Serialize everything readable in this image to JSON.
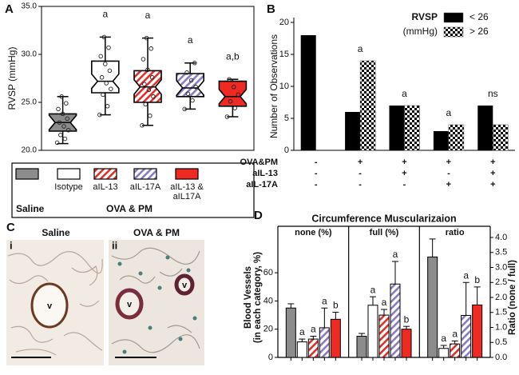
{
  "chart_data": [
    {
      "type": "box",
      "panel": "A",
      "y_label": "RVSP (mmHg)",
      "ylim": [
        20,
        35
      ],
      "yticks": [
        {
          "value": 20,
          "label": "20.0"
        },
        {
          "value": 25,
          "label": "25.0"
        },
        {
          "value": 30,
          "label": "30.0"
        },
        {
          "value": 35,
          "label": "35.0"
        }
      ],
      "groups": [
        {
          "name": "Saline",
          "color": "#8c8c8c",
          "pattern": "solid",
          "whislo": 20.7,
          "q1": 22.0,
          "median": 22.9,
          "q3": 23.8,
          "whishi": 25.6,
          "points": [
            20.8,
            21.2,
            21.6,
            22.1,
            22.5,
            22.9,
            23.3,
            23.8,
            24.3,
            24.9,
            25.6
          ],
          "annotation": null
        },
        {
          "name": "Isotype",
          "color": "#ffffff",
          "pattern": "solid",
          "whislo": 23.7,
          "q1": 26.0,
          "median": 27.2,
          "q3": 29.3,
          "whishi": 31.8,
          "points": [
            23.7,
            24.6,
            25.8,
            26.4,
            27.0,
            27.6,
            28.3,
            29.0,
            29.8,
            30.7,
            31.8
          ],
          "annotation": "a"
        },
        {
          "name": "aIL-13",
          "color": "#e0302a",
          "pattern": "hatch",
          "whislo": 22.6,
          "q1": 25.0,
          "median": 26.6,
          "q3": 28.3,
          "whishi": 31.7,
          "points": [
            22.6,
            23.6,
            24.8,
            25.6,
            26.3,
            26.9,
            27.6,
            28.4,
            29.5,
            30.6,
            31.7
          ],
          "annotation": "a"
        },
        {
          "name": "aIL-17A",
          "color": "#8a7cc0",
          "pattern": "hatch",
          "whislo": 24.3,
          "q1": 25.6,
          "median": 26.5,
          "q3": 28.0,
          "whishi": 29.1,
          "points": [
            24.3,
            25.2,
            25.9,
            26.6,
            27.3,
            28.1,
            29.1
          ],
          "annotation": "a"
        },
        {
          "name": "aIL-13 & aIL17A",
          "color": "#ee2a22",
          "pattern": "solid",
          "whislo": 23.5,
          "q1": 24.6,
          "median": 25.6,
          "q3": 27.2,
          "whishi": 27.4,
          "points": [
            23.5,
            24.4,
            25.1,
            25.8,
            26.6,
            27.4
          ],
          "annotation": "a,b"
        }
      ],
      "group_label": "OVA & PM"
    },
    {
      "type": "bar",
      "panel": "B",
      "y_label": "Number of Observations",
      "ylim": [
        0,
        20
      ],
      "yticks": [
        0,
        5,
        10,
        15,
        20
      ],
      "series": [
        {
          "name": "< 26",
          "color": "#000000",
          "pattern": "solid",
          "values": [
            18,
            6,
            7,
            3,
            7
          ]
        },
        {
          "name": "> 26",
          "color": "#000000",
          "pattern": "checker",
          "values": [
            0,
            14,
            7,
            4,
            4
          ]
        }
      ],
      "legend_title": [
        "RVSP",
        "(mmHg)"
      ],
      "annotations": [
        null,
        "a",
        "a",
        "a",
        "ns"
      ],
      "conditions": [
        {
          "label": "OVA&PM",
          "values": [
            "-",
            "+",
            "+",
            "+",
            "+"
          ]
        },
        {
          "label": "aIL-13",
          "values": [
            "-",
            "-",
            "+",
            "-",
            "+"
          ]
        },
        {
          "label": "aIL-17A",
          "values": [
            "-",
            "-",
            "-",
            "+",
            "+"
          ]
        }
      ]
    },
    {
      "type": "bar_error",
      "panel": "D",
      "title": "Circumference Muscularizaion",
      "y_label": [
        "Blood Vessels",
        "(in each category, %)"
      ],
      "y2_label": "Ratio (none / full)",
      "ylim": [
        0,
        85
      ],
      "yticks": [
        0,
        20,
        40,
        60
      ],
      "y2lim": [
        0,
        4
      ],
      "y2ticks": [
        {
          "value": 0,
          "label": "0.0"
        },
        {
          "value": 0.5,
          "label": "0.5"
        },
        {
          "value": 1,
          "label": "1.0"
        },
        {
          "value": 1.5,
          "label": "1.5"
        },
        {
          "value": 2,
          "label": "2.0"
        },
        {
          "value": 2.5,
          "label": "2.5"
        },
        {
          "value": 3,
          "label": "3.0"
        },
        {
          "value": 3.5,
          "label": "3.5"
        },
        {
          "value": 4,
          "label": "4.0"
        }
      ],
      "colors": [
        "#8c8c8c",
        "#ffffff",
        "#e0302a",
        "#8a7cc0",
        "#ee2a22"
      ],
      "patterns": [
        "solid",
        "solid",
        "hatch",
        "hatch",
        "solid"
      ],
      "sections": [
        {
          "name": "none (%)",
          "values": [
            35,
            11,
            13,
            21,
            27
          ],
          "errors": [
            3,
            2,
            2,
            14,
            5
          ],
          "annotations": [
            null,
            "a",
            "a",
            "a",
            "b"
          ]
        },
        {
          "name": "full (%)",
          "values": [
            15,
            37,
            30,
            52,
            20
          ],
          "errors": [
            2,
            6,
            4,
            16,
            2
          ],
          "annotations": [
            null,
            "a",
            "a",
            "a",
            "b"
          ]
        },
        {
          "name": "ratio",
          "axis": "y2",
          "values": [
            3.35,
            0.3,
            0.45,
            1.4,
            1.75
          ],
          "errors": [
            0.6,
            0.1,
            0.1,
            1.1,
            0.6
          ],
          "annotations": [
            null,
            "a",
            "a",
            "a",
            "b"
          ]
        }
      ]
    }
  ],
  "micrographs": {
    "panel": "C",
    "images": [
      {
        "numeral": "i",
        "title": "Saline",
        "vessel_labels": [
          "v"
        ]
      },
      {
        "numeral": "ii",
        "title": "OVA & PM",
        "vessel_labels": [
          "v",
          "v"
        ]
      }
    ]
  }
}
